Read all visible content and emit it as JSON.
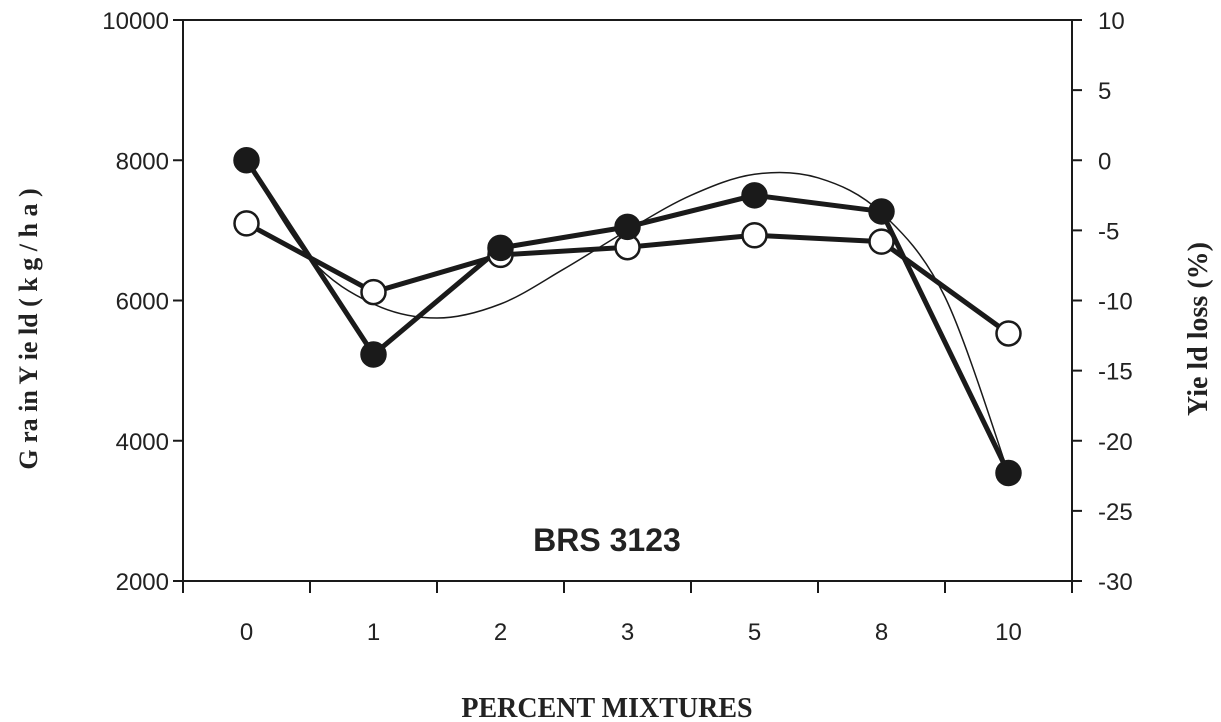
{
  "chart_data": {
    "type": "line",
    "title": "",
    "annotation": "BRS 3123",
    "xlabel": "PERCENT MIXTURES",
    "ylabel_left": "G ra in  Y ie ld  ( k g / h a )",
    "ylabel_right": "Yie ld  loss  (%)",
    "categories": [
      "0",
      "1",
      "2",
      "3",
      "5",
      "8",
      "10"
    ],
    "ylim_left": [
      2000,
      10000
    ],
    "yticks_left": [
      2000,
      4000,
      6000,
      8000,
      10000
    ],
    "ylim_right": [
      -30,
      10
    ],
    "yticks_right": [
      -30,
      -25,
      -20,
      -15,
      -10,
      -5,
      0,
      5,
      10
    ],
    "grid": false,
    "series": [
      {
        "marker": "filled-circle",
        "axis": "left",
        "values": [
          8000,
          5230,
          6750,
          7050,
          7500,
          7270,
          3540
        ]
      },
      {
        "marker": "open-circle",
        "axis": "left",
        "values": [
          7100,
          6120,
          6650,
          6760,
          6930,
          6840,
          5530
        ]
      }
    ],
    "trendline": {
      "type": "polynomial",
      "axis": "left",
      "points": [
        [
          0,
          8000
        ],
        [
          0.5,
          6600
        ],
        [
          1,
          5950
        ],
        [
          1.5,
          5750
        ],
        [
          2,
          5950
        ],
        [
          2.5,
          6450
        ],
        [
          3,
          7000
        ],
        [
          3.5,
          7500
        ],
        [
          4,
          7800
        ],
        [
          4.5,
          7750
        ],
        [
          5,
          7250
        ],
        [
          5.5,
          6050
        ],
        [
          6,
          3540
        ]
      ]
    },
    "colors": {
      "line": "#1a1a1a",
      "filled_marker": "#1a1a1a",
      "open_marker_fill": "#ffffff"
    }
  }
}
